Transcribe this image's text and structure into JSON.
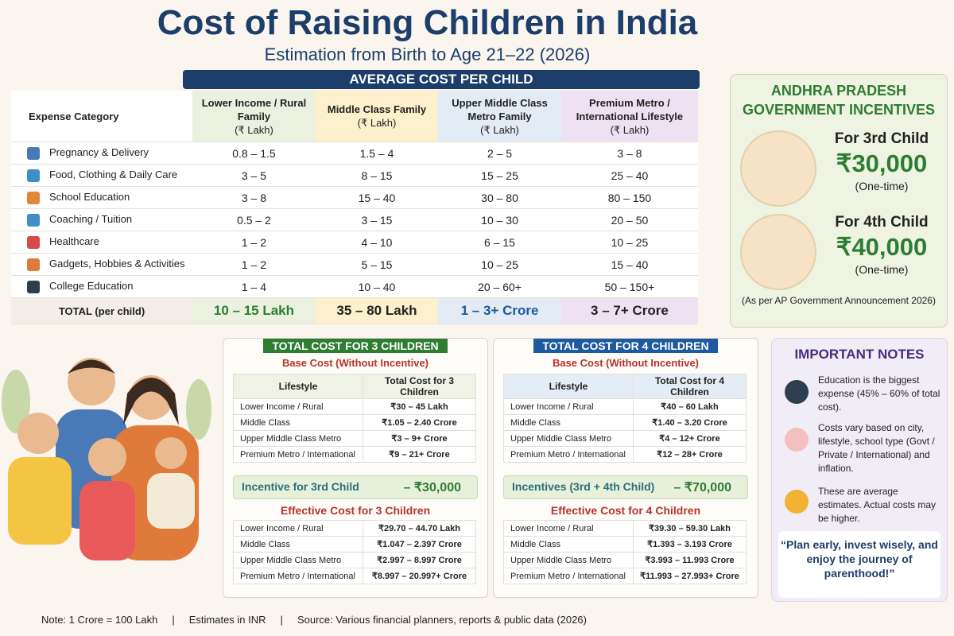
{
  "header": {
    "title": "Cost of Raising Children in India",
    "subtitle": "Estimation from Birth to Age 21–22 (2026)"
  },
  "main_table": {
    "banner": "AVERAGE COST PER CHILD",
    "columns": [
      "Expense Category",
      "Lower Income / Rural Family",
      "Middle Class Family",
      "Upper Middle Class Metro Family",
      "Premium Metro / International Lifestyle"
    ],
    "unit": "(₹ Lakh)",
    "rows": [
      [
        "Pregnancy & Delivery",
        "0.8 – 1.5",
        "1.5 – 4",
        "2 – 5",
        "3 – 8"
      ],
      [
        "Food, Clothing & Daily Care",
        "3 – 5",
        "8 – 15",
        "15 – 25",
        "25 – 40"
      ],
      [
        "School Education",
        "3 – 8",
        "15 – 40",
        "30 – 80",
        "80 – 150"
      ],
      [
        "Coaching / Tuition",
        "0.5 – 2",
        "3 – 15",
        "10 – 30",
        "20 – 50"
      ],
      [
        "Healthcare",
        "1 – 2",
        "4 – 10",
        "6 – 15",
        "10 – 25"
      ],
      [
        "Gadgets, Hobbies & Activities",
        "1 – 2",
        "5 – 15",
        "10 – 25",
        "15 – 40"
      ],
      [
        "College Education",
        "1 – 4",
        "10 – 40",
        "20 – 60+",
        "50 – 150+"
      ]
    ],
    "total": [
      "TOTAL (per child)",
      "10 – 15 Lakh",
      "35 – 80 Lakh",
      "1 – 3+ Crore",
      "3 – 7+ Crore"
    ]
  },
  "ap_panel": {
    "title": "ANDHRA PRADESH GOVERNMENT INCENTIVES",
    "incentives": [
      {
        "label": "For 3rd Child",
        "amount": "₹30,000",
        "note": "(One-time)"
      },
      {
        "label": "For 4th Child",
        "amount": "₹40,000",
        "note": "(One-time)"
      }
    ],
    "source": "(As per AP Government Announcement 2026)"
  },
  "scenarios": [
    {
      "title": "TOTAL COST FOR 3 CHILDREN",
      "base_label": "Base Cost (Without Incentive)",
      "columns": [
        "Lifestyle",
        "Total Cost for 3 Children"
      ],
      "rows": [
        [
          "Lower Income / Rural",
          "₹30 – 45 Lakh"
        ],
        [
          "Middle Class",
          "₹1.05 – 2.40 Crore"
        ],
        [
          "Upper Middle Class Metro",
          "₹3 – 9+ Crore"
        ],
        [
          "Premium Metro / International",
          "₹9 – 21+ Crore"
        ]
      ],
      "incentive_label": "Incentive for 3rd Child",
      "incentive_value": "– ₹30,000",
      "effective_label": "Effective Cost for 3 Children",
      "effective_rows": [
        [
          "Lower Income / Rural",
          "₹29.70 – 44.70 Lakh"
        ],
        [
          "Middle Class",
          "₹1.047 – 2.397 Crore"
        ],
        [
          "Upper Middle Class Metro",
          "₹2.997 – 8.997 Crore"
        ],
        [
          "Premium Metro / International",
          "₹8.997 – 20.997+ Crore"
        ]
      ]
    },
    {
      "title": "TOTAL COST FOR 4 CHILDREN",
      "base_label": "Base Cost (Without Incentive)",
      "columns": [
        "Lifestyle",
        "Total Cost for 4 Children"
      ],
      "rows": [
        [
          "Lower Income / Rural",
          "₹40 – 60 Lakh"
        ],
        [
          "Middle Class",
          "₹1.40 – 3.20 Crore"
        ],
        [
          "Upper Middle Class Metro",
          "₹4 – 12+ Crore"
        ],
        [
          "Premium Metro / International",
          "₹12 – 28+ Crore"
        ]
      ],
      "incentive_label": "Incentives (3rd + 4th Child)",
      "incentive_value": "– ₹70,000",
      "effective_label": "Effective Cost for 4 Children",
      "effective_rows": [
        [
          "Lower Income / Rural",
          "₹39.30 – 59.30 Lakh"
        ],
        [
          "Middle Class",
          "₹1.393 – 3.193 Crore"
        ],
        [
          "Upper Middle Class Metro",
          "₹3.993 – 11.993 Crore"
        ],
        [
          "Premium Metro / International",
          "₹11.993 – 27.993+ Crore"
        ]
      ]
    }
  ],
  "notes": {
    "title": "IMPORTANT NOTES",
    "items": [
      "Education is the biggest expense (45% – 60% of total cost).",
      "Costs vary based on city, lifestyle, school type (Govt / Private / International) and inflation.",
      "These are average estimates. Actual costs may be higher."
    ],
    "quote": "“Plan early, invest wisely, and enjoy the journey of parenthood!”"
  },
  "footer": [
    "Note:  1 Crore = 100 Lakh",
    "|",
    "Estimates in INR",
    "|",
    "Source: Various financial planners, reports & public data (2026)"
  ]
}
